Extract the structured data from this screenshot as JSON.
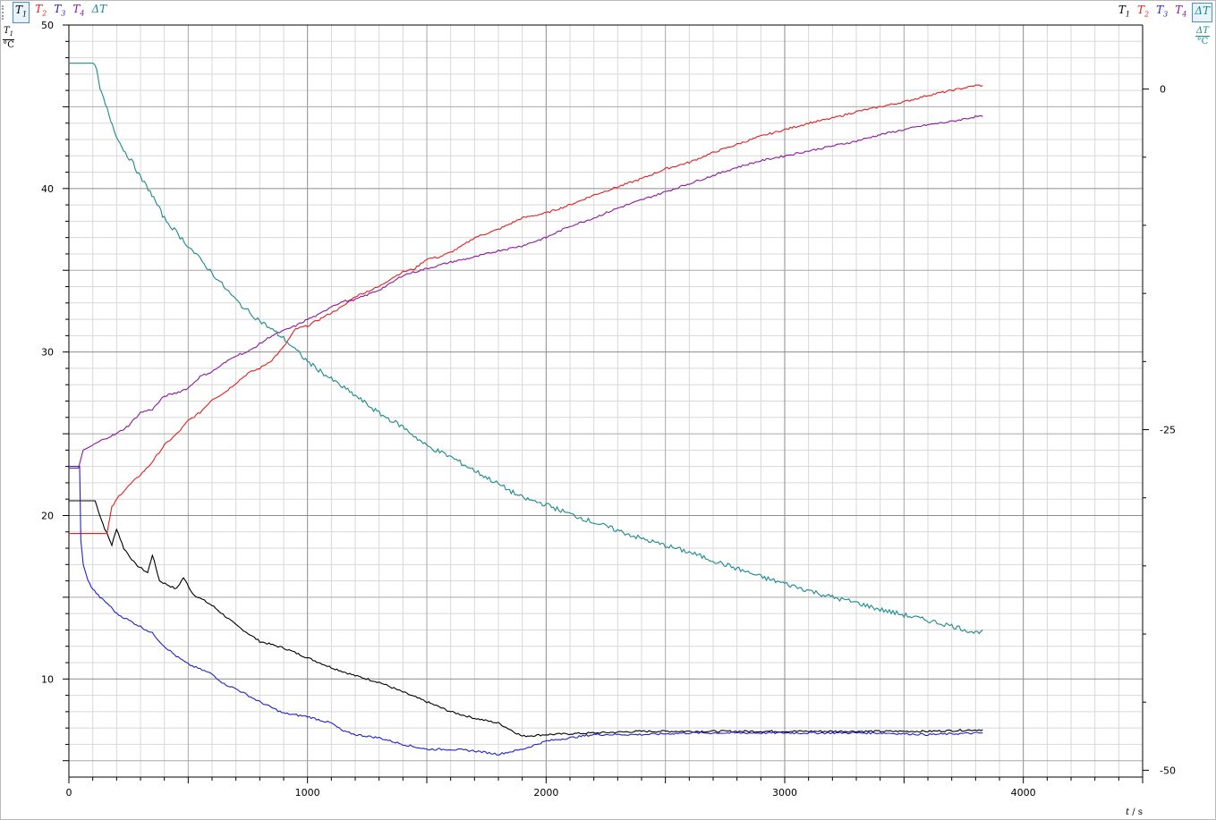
{
  "toolbar": {
    "left": [
      {
        "sym": "T",
        "sub": "1",
        "color": "#000000",
        "active": true
      },
      {
        "sym": "T",
        "sub": "2",
        "color": "#e02020",
        "active": false
      },
      {
        "sym": "T",
        "sub": "3",
        "color": "#2020d0",
        "active": false
      },
      {
        "sym": "T",
        "sub": "4",
        "color": "#8a1a9a",
        "active": false
      },
      {
        "sym": "ΔT",
        "sub": "",
        "color": "#1a8a8a",
        "active": false
      }
    ],
    "right": [
      {
        "sym": "T",
        "sub": "1",
        "color": "#000000",
        "active": false
      },
      {
        "sym": "T",
        "sub": "2",
        "color": "#e02020",
        "active": false
      },
      {
        "sym": "T",
        "sub": "3",
        "color": "#2020d0",
        "active": false
      },
      {
        "sym": "T",
        "sub": "4",
        "color": "#8a1a9a",
        "active": false
      },
      {
        "sym": "ΔT",
        "sub": "",
        "color": "#1a8a8a",
        "active": true
      }
    ]
  },
  "chart_data": {
    "type": "line",
    "title": "",
    "x_axis": {
      "label_quantity": "t",
      "label_unit": "s",
      "min": 0,
      "max": 4500,
      "ticks": [
        0,
        1000,
        2000,
        3000,
        4000
      ]
    },
    "y_left": {
      "label_quantity": "T",
      "label_sub": "1",
      "label_unit": "°C",
      "min": 4,
      "max": 50,
      "ticks": [
        10,
        20,
        30,
        40,
        50
      ],
      "color": "#000000"
    },
    "y_right": {
      "label_quantity": "ΔT",
      "label_unit": "°C",
      "min": -50.5,
      "max": 4.7,
      "ticks": [
        0,
        -25,
        -50
      ],
      "color": "#1a8a8a"
    },
    "grid": true,
    "series": [
      {
        "name": "T1",
        "color": "#000000",
        "axis": "left",
        "points": [
          [
            0,
            20.9
          ],
          [
            110,
            20.9
          ],
          [
            130,
            20
          ],
          [
            150,
            19.2
          ],
          [
            180,
            18.2
          ],
          [
            200,
            19.2
          ],
          [
            230,
            18
          ],
          [
            280,
            17
          ],
          [
            330,
            16.5
          ],
          [
            350,
            17.6
          ],
          [
            380,
            16
          ],
          [
            450,
            15.5
          ],
          [
            480,
            16.2
          ],
          [
            520,
            15.2
          ],
          [
            600,
            14.5
          ],
          [
            700,
            13.3
          ],
          [
            800,
            12.3
          ],
          [
            900,
            11.9
          ],
          [
            1000,
            11.3
          ],
          [
            1100,
            10.7
          ],
          [
            1200,
            10.2
          ],
          [
            1300,
            9.8
          ],
          [
            1400,
            9.2
          ],
          [
            1500,
            8.6
          ],
          [
            1600,
            8.0
          ],
          [
            1700,
            7.6
          ],
          [
            1800,
            7.3
          ],
          [
            1900,
            6.5
          ],
          [
            2000,
            6.6
          ],
          [
            2200,
            6.7
          ],
          [
            2400,
            6.8
          ],
          [
            2700,
            6.8
          ],
          [
            3000,
            6.8
          ],
          [
            3300,
            6.8
          ],
          [
            3600,
            6.8
          ],
          [
            3830,
            6.9
          ]
        ]
      },
      {
        "name": "T2",
        "color": "#e02020",
        "axis": "left",
        "points": [
          [
            0,
            18.9
          ],
          [
            160,
            18.9
          ],
          [
            180,
            20.5
          ],
          [
            210,
            21.2
          ],
          [
            250,
            21.8
          ],
          [
            300,
            22.5
          ],
          [
            340,
            23.1
          ],
          [
            400,
            24.3
          ],
          [
            460,
            25.1
          ],
          [
            500,
            25.8
          ],
          [
            550,
            26.3
          ],
          [
            600,
            27.1
          ],
          [
            650,
            27.5
          ],
          [
            700,
            28.1
          ],
          [
            750,
            28.7
          ],
          [
            800,
            29.0
          ],
          [
            850,
            29.5
          ],
          [
            900,
            30.3
          ],
          [
            950,
            31.4
          ],
          [
            1000,
            31.6
          ],
          [
            1050,
            32.0
          ],
          [
            1100,
            32.4
          ],
          [
            1150,
            32.8
          ],
          [
            1200,
            33.4
          ],
          [
            1250,
            33.7
          ],
          [
            1300,
            34.0
          ],
          [
            1350,
            34.5
          ],
          [
            1400,
            34.9
          ],
          [
            1450,
            35.1
          ],
          [
            1500,
            35.7
          ],
          [
            1550,
            35.8
          ],
          [
            1600,
            36.1
          ],
          [
            1650,
            36.5
          ],
          [
            1700,
            37.0
          ],
          [
            1800,
            37.5
          ],
          [
            1900,
            38.2
          ],
          [
            2000,
            38.5
          ],
          [
            2100,
            39.0
          ],
          [
            2200,
            39.6
          ],
          [
            2300,
            40.1
          ],
          [
            2400,
            40.6
          ],
          [
            2500,
            41.2
          ],
          [
            2600,
            41.6
          ],
          [
            2700,
            42.2
          ],
          [
            2800,
            42.7
          ],
          [
            2900,
            43.2
          ],
          [
            3000,
            43.6
          ],
          [
            3100,
            44.0
          ],
          [
            3200,
            44.3
          ],
          [
            3300,
            44.7
          ],
          [
            3400,
            45.0
          ],
          [
            3500,
            45.3
          ],
          [
            3600,
            45.7
          ],
          [
            3700,
            46.0
          ],
          [
            3800,
            46.3
          ],
          [
            3830,
            46.3
          ]
        ]
      },
      {
        "name": "T3",
        "color": "#2020d0",
        "axis": "left",
        "points": [
          [
            0,
            23.0
          ],
          [
            45,
            23.0
          ],
          [
            50,
            18.5
          ],
          [
            60,
            17.0
          ],
          [
            80,
            16.0
          ],
          [
            100,
            15.5
          ],
          [
            130,
            15.0
          ],
          [
            170,
            14.5
          ],
          [
            200,
            14.0
          ],
          [
            250,
            13.6
          ],
          [
            300,
            13.2
          ],
          [
            350,
            12.8
          ],
          [
            400,
            12.0
          ],
          [
            450,
            11.4
          ],
          [
            500,
            10.9
          ],
          [
            550,
            10.6
          ],
          [
            600,
            10.3
          ],
          [
            650,
            9.7
          ],
          [
            700,
            9.4
          ],
          [
            800,
            8.6
          ],
          [
            900,
            7.9
          ],
          [
            1000,
            7.7
          ],
          [
            1100,
            7.3
          ],
          [
            1150,
            6.8
          ],
          [
            1200,
            6.6
          ],
          [
            1300,
            6.4
          ],
          [
            1400,
            6.0
          ],
          [
            1500,
            5.7
          ],
          [
            1600,
            5.7
          ],
          [
            1700,
            5.6
          ],
          [
            1800,
            5.4
          ],
          [
            1900,
            5.7
          ],
          [
            2000,
            6.2
          ],
          [
            2100,
            6.4
          ],
          [
            2200,
            6.6
          ],
          [
            2400,
            6.6
          ],
          [
            2600,
            6.7
          ],
          [
            2800,
            6.7
          ],
          [
            3000,
            6.7
          ],
          [
            3200,
            6.7
          ],
          [
            3400,
            6.7
          ],
          [
            3600,
            6.6
          ],
          [
            3830,
            6.7
          ]
        ]
      },
      {
        "name": "T4",
        "color": "#8a1a9a",
        "axis": "left",
        "points": [
          [
            0,
            22.9
          ],
          [
            40,
            22.9
          ],
          [
            60,
            24.0
          ],
          [
            100,
            24.3
          ],
          [
            150,
            24.7
          ],
          [
            200,
            25.0
          ],
          [
            250,
            25.5
          ],
          [
            300,
            26.3
          ],
          [
            350,
            26.5
          ],
          [
            400,
            27.3
          ],
          [
            450,
            27.5
          ],
          [
            500,
            27.8
          ],
          [
            550,
            28.5
          ],
          [
            600,
            28.8
          ],
          [
            650,
            29.3
          ],
          [
            700,
            29.8
          ],
          [
            750,
            30.0
          ],
          [
            800,
            30.5
          ],
          [
            850,
            31.0
          ],
          [
            900,
            31.3
          ],
          [
            950,
            31.6
          ],
          [
            1000,
            32.0
          ],
          [
            1050,
            32.3
          ],
          [
            1100,
            32.8
          ],
          [
            1150,
            33.1
          ],
          [
            1200,
            33.2
          ],
          [
            1250,
            33.5
          ],
          [
            1300,
            33.8
          ],
          [
            1350,
            34.2
          ],
          [
            1400,
            34.7
          ],
          [
            1450,
            34.9
          ],
          [
            1500,
            35.1
          ],
          [
            1550,
            35.3
          ],
          [
            1600,
            35.5
          ],
          [
            1700,
            35.8
          ],
          [
            1800,
            36.2
          ],
          [
            1900,
            36.5
          ],
          [
            2000,
            37.0
          ],
          [
            2100,
            37.7
          ],
          [
            2200,
            38.2
          ],
          [
            2300,
            38.8
          ],
          [
            2400,
            39.3
          ],
          [
            2500,
            39.8
          ],
          [
            2600,
            40.3
          ],
          [
            2700,
            40.8
          ],
          [
            2800,
            41.3
          ],
          [
            2900,
            41.7
          ],
          [
            3000,
            42.0
          ],
          [
            3100,
            42.3
          ],
          [
            3200,
            42.6
          ],
          [
            3300,
            42.9
          ],
          [
            3400,
            43.3
          ],
          [
            3500,
            43.6
          ],
          [
            3600,
            43.9
          ],
          [
            3700,
            44.1
          ],
          [
            3800,
            44.4
          ],
          [
            3830,
            44.4
          ]
        ]
      },
      {
        "name": "ΔT",
        "color": "#1a8a8a",
        "axis": "right",
        "points": [
          [
            0,
            1.9
          ],
          [
            110,
            1.9
          ],
          [
            130,
            0
          ],
          [
            160,
            -1.5
          ],
          [
            190,
            -3
          ],
          [
            220,
            -4.2
          ],
          [
            270,
            -5.5
          ],
          [
            300,
            -6.5
          ],
          [
            340,
            -7.5
          ],
          [
            400,
            -9.5
          ],
          [
            450,
            -10.5
          ],
          [
            500,
            -11.5
          ],
          [
            550,
            -12.5
          ],
          [
            600,
            -13.5
          ],
          [
            650,
            -14.5
          ],
          [
            700,
            -15.5
          ],
          [
            750,
            -16.3
          ],
          [
            800,
            -17.0
          ],
          [
            900,
            -18.3
          ],
          [
            1000,
            -20.0
          ],
          [
            1100,
            -21.3
          ],
          [
            1200,
            -22.5
          ],
          [
            1300,
            -23.8
          ],
          [
            1400,
            -24.8
          ],
          [
            1500,
            -26.2
          ],
          [
            1600,
            -27.0
          ],
          [
            1700,
            -28.0
          ],
          [
            1800,
            -29.0
          ],
          [
            1900,
            -30.0
          ],
          [
            2000,
            -30.5
          ],
          [
            2100,
            -31.2
          ],
          [
            2200,
            -31.8
          ],
          [
            2300,
            -32.4
          ],
          [
            2400,
            -33.0
          ],
          [
            2500,
            -33.5
          ],
          [
            2600,
            -34.0
          ],
          [
            2700,
            -34.6
          ],
          [
            2800,
            -35.2
          ],
          [
            2900,
            -35.8
          ],
          [
            3000,
            -36.3
          ],
          [
            3100,
            -36.8
          ],
          [
            3200,
            -37.3
          ],
          [
            3300,
            -37.7
          ],
          [
            3400,
            -38.2
          ],
          [
            3500,
            -38.6
          ],
          [
            3600,
            -39.0
          ],
          [
            3700,
            -39.4
          ],
          [
            3800,
            -39.9
          ],
          [
            3830,
            -39.7
          ]
        ]
      }
    ]
  }
}
